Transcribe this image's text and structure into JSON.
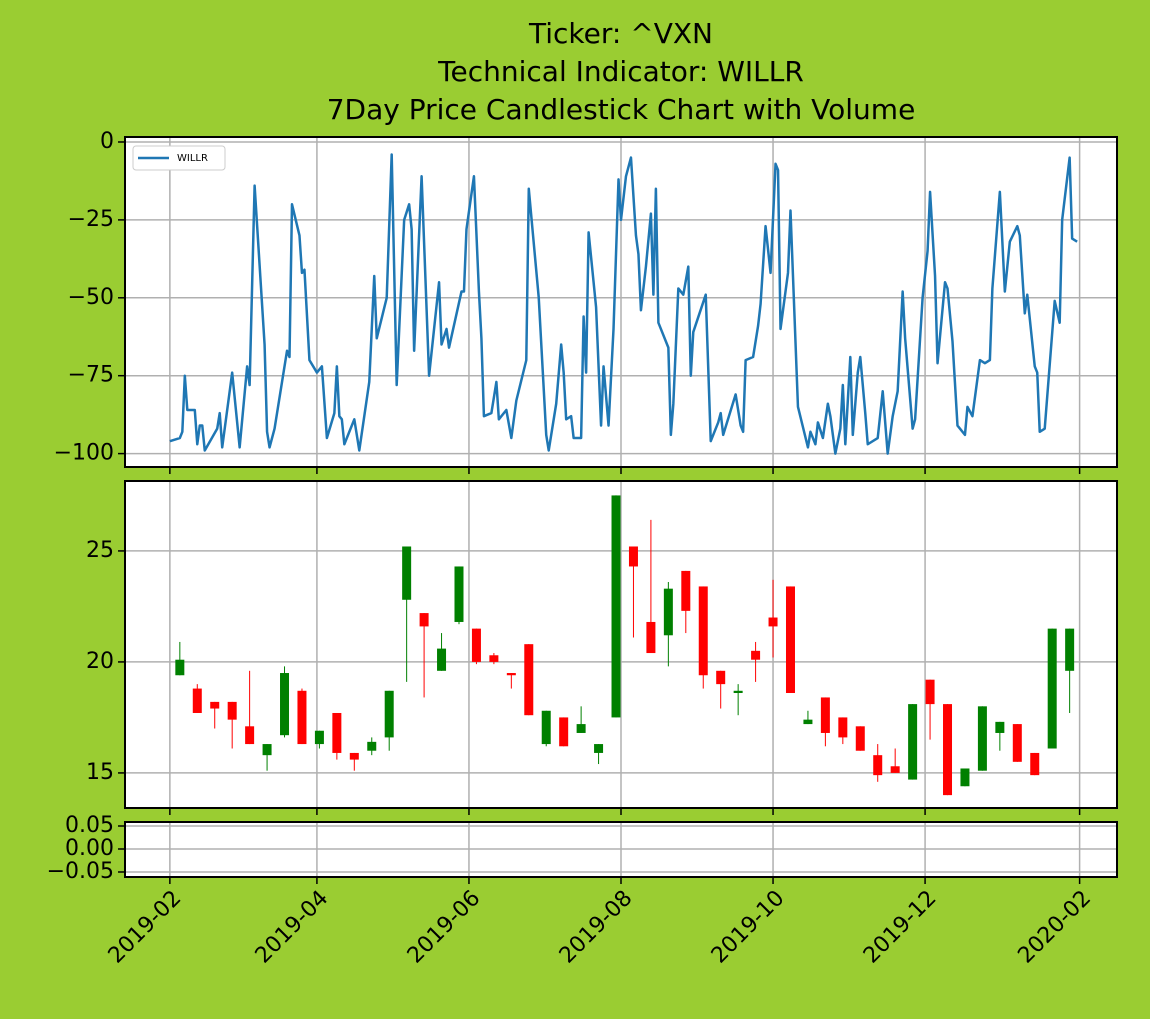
{
  "title": [
    "Ticker: ^VXN",
    "Technical Indicator: WILLR",
    "7Day Price Candlestick Chart with Volume"
  ],
  "chart_data": [
    {
      "type": "line",
      "x": [
        "2019-02-01",
        "2019-02-05",
        "2019-02-06",
        "2019-02-07",
        "2019-02-08",
        "2019-02-11",
        "2019-02-12",
        "2019-02-13",
        "2019-02-14",
        "2019-02-15",
        "2019-02-20",
        "2019-02-21",
        "2019-02-22",
        "2019-02-26",
        "2019-03-01",
        "2019-03-04",
        "2019-03-05",
        "2019-03-07",
        "2019-03-11",
        "2019-03-12",
        "2019-03-13",
        "2019-03-15",
        "2019-03-20",
        "2019-03-21",
        "2019-03-22",
        "2019-03-25",
        "2019-03-26",
        "2019-03-27",
        "2019-03-29",
        "2019-04-01",
        "2019-04-03",
        "2019-04-05",
        "2019-04-08",
        "2019-04-09",
        "2019-04-10",
        "2019-04-11",
        "2019-04-12",
        "2019-04-16",
        "2019-04-18",
        "2019-04-22",
        "2019-04-24",
        "2019-04-25",
        "2019-04-29",
        "2019-05-01",
        "2019-05-03",
        "2019-05-06",
        "2019-05-08",
        "2019-05-09",
        "2019-05-10",
        "2019-05-13",
        "2019-05-16",
        "2019-05-20",
        "2019-05-21",
        "2019-05-23",
        "2019-05-24",
        "2019-05-29",
        "2019-05-30",
        "2019-05-31",
        "2019-06-03",
        "2019-06-05",
        "2019-06-06",
        "2019-06-07",
        "2019-06-10",
        "2019-06-12",
        "2019-06-13",
        "2019-06-16",
        "2019-06-18",
        "2019-06-20",
        "2019-06-24",
        "2019-06-25",
        "2019-06-29",
        "2019-07-02",
        "2019-07-03",
        "2019-07-06",
        "2019-07-08",
        "2019-07-09",
        "2019-07-10",
        "2019-07-12",
        "2019-07-13",
        "2019-07-16",
        "2019-07-17",
        "2019-07-18",
        "2019-07-19",
        "2019-07-22",
        "2019-07-24",
        "2019-07-25",
        "2019-07-27",
        "2019-07-29",
        "2019-07-31",
        "2019-08-01",
        "2019-08-03",
        "2019-08-05",
        "2019-08-07",
        "2019-08-08",
        "2019-08-09",
        "2019-08-11",
        "2019-08-13",
        "2019-08-14",
        "2019-08-15",
        "2019-08-16",
        "2019-08-20",
        "2019-08-21",
        "2019-08-22",
        "2019-08-24",
        "2019-08-26",
        "2019-08-28",
        "2019-08-29",
        "2019-08-30",
        "2019-09-04",
        "2019-09-06",
        "2019-09-09",
        "2019-09-10",
        "2019-09-11",
        "2019-09-16",
        "2019-09-18",
        "2019-09-19",
        "2019-09-20",
        "2019-09-23",
        "2019-09-25",
        "2019-09-26",
        "2019-09-28",
        "2019-09-30",
        "2019-10-02",
        "2019-10-03",
        "2019-10-04",
        "2019-10-07",
        "2019-10-08",
        "2019-10-11",
        "2019-10-15",
        "2019-10-16",
        "2019-10-18",
        "2019-10-19",
        "2019-10-21",
        "2019-10-23",
        "2019-10-24",
        "2019-10-26",
        "2019-10-28",
        "2019-10-29",
        "2019-10-30",
        "2019-11-01",
        "2019-11-02",
        "2019-11-04",
        "2019-11-05",
        "2019-11-07",
        "2019-11-08",
        "2019-11-12",
        "2019-11-14",
        "2019-11-16",
        "2019-11-18",
        "2019-11-20",
        "2019-11-22",
        "2019-11-23",
        "2019-11-26",
        "2019-11-27",
        "2019-11-30",
        "2019-12-02",
        "2019-12-03",
        "2019-12-05",
        "2019-12-06",
        "2019-12-09",
        "2019-12-10",
        "2019-12-12",
        "2019-12-14",
        "2019-12-17",
        "2019-12-18",
        "2019-12-20",
        "2019-12-23",
        "2019-12-25",
        "2019-12-27",
        "2019-12-28",
        "2019-12-31",
        "2020-01-02",
        "2020-01-04",
        "2020-01-07",
        "2020-01-08",
        "2020-01-10",
        "2020-01-11",
        "2020-01-14",
        "2020-01-15",
        "2020-01-16",
        "2020-01-18",
        "2020-01-22",
        "2020-01-24",
        "2020-01-25",
        "2020-01-28",
        "2020-01-29",
        "2020-01-31"
      ],
      "series": [
        {
          "name": "WILLR",
          "color": "#1f77b4",
          "values": [
            -96,
            -95,
            -93,
            -75,
            -86,
            -86,
            -97,
            -91,
            -91,
            -99,
            -92,
            -87,
            -98,
            -74,
            -98,
            -72,
            -78,
            -14,
            -65,
            -93,
            -98,
            -92,
            -67,
            -69,
            -20,
            -30,
            -42,
            -41,
            -70,
            -74,
            -72,
            -95,
            -87,
            -72,
            -88,
            -89,
            -97,
            -89,
            -99,
            -77,
            -43,
            -63,
            -50,
            -4,
            -78,
            -25,
            -20,
            -28,
            -67,
            -11,
            -75,
            -45,
            -65,
            -60,
            -66,
            -48,
            -48,
            -28,
            -11,
            -48,
            -63,
            -88,
            -87,
            -77,
            -89,
            -86,
            -95,
            -83,
            -70,
            -15,
            -50,
            -94,
            -99,
            -84,
            -65,
            -74,
            -89,
            -88,
            -95,
            -95,
            -56,
            -74,
            -29,
            -53,
            -91,
            -72,
            -91,
            -60,
            -12,
            -25,
            -11,
            -5,
            -30,
            -36,
            -54,
            -40,
            -23,
            -49,
            -15,
            -58,
            -66,
            -94,
            -84,
            -47,
            -49,
            -40,
            -75,
            -61,
            -49,
            -96,
            -90,
            -87,
            -94,
            -81,
            -91,
            -93,
            -70,
            -69,
            -59,
            -52,
            -27,
            -42,
            -7,
            -9,
            -60,
            -42,
            -22,
            -85,
            -98,
            -93,
            -97,
            -90,
            -95,
            -84,
            -88,
            -100,
            -92,
            -78,
            -97,
            -69,
            -94,
            -74,
            -69,
            -87,
            -97,
            -95,
            -80,
            -100,
            -88,
            -80,
            -48,
            -63,
            -92,
            -89,
            -50,
            -35,
            -16,
            -43,
            -71,
            -45,
            -47,
            -64,
            -91,
            -94,
            -85,
            -88,
            -70,
            -71,
            -70,
            -47,
            -16,
            -48,
            -32,
            -27,
            -30,
            -55,
            -49,
            -72,
            -74,
            -93,
            -92,
            -51,
            -58,
            -25,
            -5,
            -31,
            -32
          ]
        }
      ],
      "ylim": [
        -104.3,
        1.6
      ],
      "yticks": [
        0,
        {
          "value": -25,
          "label": "−25"
        },
        {
          "value": -50,
          "label": "−50"
        },
        {
          "value": -75,
          "label": "−75"
        },
        {
          "value": -100,
          "label": "−100"
        }
      ],
      "grid": true,
      "legend": "upper left"
    },
    {
      "type": "candlestick",
      "x": [
        "2019-02-05",
        "2019-02-12",
        "2019-02-19",
        "2019-02-26",
        "2019-03-05",
        "2019-03-12",
        "2019-03-19",
        "2019-03-26",
        "2019-04-02",
        "2019-04-09",
        "2019-04-16",
        "2019-04-23",
        "2019-04-30",
        "2019-05-07",
        "2019-05-14",
        "2019-05-21",
        "2019-05-28",
        "2019-06-04",
        "2019-06-11",
        "2019-06-18",
        "2019-06-25",
        "2019-07-02",
        "2019-07-09",
        "2019-07-16",
        "2019-07-23",
        "2019-07-30",
        "2019-08-06",
        "2019-08-13",
        "2019-08-20",
        "2019-08-27",
        "2019-09-03",
        "2019-09-10",
        "2019-09-17",
        "2019-09-24",
        "2019-10-01",
        "2019-10-08",
        "2019-10-15",
        "2019-10-22",
        "2019-10-29",
        "2019-11-05",
        "2019-11-12",
        "2019-11-19",
        "2019-11-26",
        "2019-12-03",
        "2019-12-10",
        "2019-12-17",
        "2019-12-24",
        "2019-12-31",
        "2020-01-07",
        "2020-01-14",
        "2020-01-21",
        "2020-01-28"
      ],
      "open": [
        19.4,
        18.8,
        18.2,
        18.2,
        17.1,
        15.8,
        16.7,
        18.7,
        16.3,
        17.7,
        15.9,
        16.0,
        16.6,
        22.8,
        22.2,
        19.6,
        21.8,
        21.5,
        20.3,
        19.5,
        20.8,
        16.3,
        17.5,
        16.8,
        15.9,
        17.5,
        25.2,
        21.8,
        21.2,
        24.1,
        23.4,
        19.6,
        18.6,
        20.5,
        22.0,
        23.4,
        17.2,
        18.4,
        17.5,
        17.1,
        15.8,
        15.3,
        14.7,
        19.2,
        18.1,
        14.4,
        15.1,
        16.8,
        17.2,
        15.9,
        16.1,
        19.6
      ],
      "high": [
        20.9,
        19.0,
        18.2,
        18.2,
        19.6,
        16.3,
        19.8,
        18.8,
        16.9,
        17.7,
        15.9,
        16.6,
        18.7,
        25.2,
        22.2,
        21.3,
        24.3,
        21.5,
        20.4,
        19.5,
        20.8,
        17.8,
        17.5,
        18.0,
        16.3,
        27.5,
        25.2,
        26.4,
        23.6,
        24.1,
        23.4,
        19.6,
        19.0,
        20.9,
        23.7,
        23.4,
        17.8,
        18.4,
        17.5,
        17.1,
        16.3,
        16.1,
        18.1,
        19.2,
        18.1,
        15.2,
        18.0,
        17.3,
        17.2,
        15.9,
        21.5,
        21.5
      ],
      "low": [
        19.4,
        17.7,
        17.0,
        16.1,
        16.3,
        15.1,
        16.6,
        16.3,
        16.1,
        15.6,
        15.1,
        15.8,
        16.0,
        19.1,
        18.4,
        19.6,
        21.7,
        19.9,
        19.9,
        18.8,
        17.6,
        16.2,
        16.2,
        16.8,
        15.4,
        17.5,
        21.1,
        20.4,
        19.8,
        21.3,
        18.8,
        17.9,
        17.6,
        19.1,
        20.2,
        18.6,
        17.2,
        16.2,
        16.3,
        16.0,
        14.6,
        15.0,
        14.7,
        16.5,
        14.0,
        14.4,
        15.1,
        16.0,
        15.5,
        14.9,
        16.1,
        17.7
      ],
      "close": [
        20.1,
        17.7,
        17.9,
        17.4,
        16.3,
        16.3,
        19.5,
        16.3,
        16.9,
        15.9,
        15.6,
        16.4,
        18.7,
        25.2,
        21.6,
        20.6,
        24.3,
        20.0,
        20.0,
        19.4,
        17.6,
        17.8,
        16.2,
        17.2,
        16.3,
        27.5,
        24.3,
        20.4,
        23.3,
        22.3,
        19.4,
        19.0,
        18.7,
        20.1,
        21.6,
        18.6,
        17.4,
        16.8,
        16.6,
        16.0,
        14.9,
        15.0,
        18.1,
        18.1,
        14.0,
        15.2,
        18.0,
        17.3,
        15.5,
        14.9,
        21.5,
        21.5
      ],
      "up_color": "green",
      "down_color": "red",
      "ylim": [
        13.42,
        28.15
      ],
      "yticks": [
        15,
        20,
        25
      ],
      "grid": true
    },
    {
      "type": "bar",
      "ylim": [
        -0.0609,
        0.0587
      ],
      "yticks": [
        {
          "value": 0.05,
          "label": "0.05"
        },
        {
          "value": 0,
          "label": "0.00"
        },
        {
          "value": -0.05,
          "label": "−0.05"
        }
      ],
      "xlim": [
        "2019-01-14",
        "2020-02-16"
      ],
      "xticks": [
        {
          "value": "2019-02-01",
          "label": "2019-02"
        },
        {
          "value": "2019-04-01",
          "label": "2019-04"
        },
        {
          "value": "2019-06-01",
          "label": "2019-06"
        },
        {
          "value": "2019-08-01",
          "label": "2019-08"
        },
        {
          "value": "2019-10-01",
          "label": "2019-10"
        },
        {
          "value": "2019-12-01",
          "label": "2019-12"
        },
        {
          "value": "2020-02-01",
          "label": "2020-02"
        }
      ],
      "grid": true
    }
  ]
}
